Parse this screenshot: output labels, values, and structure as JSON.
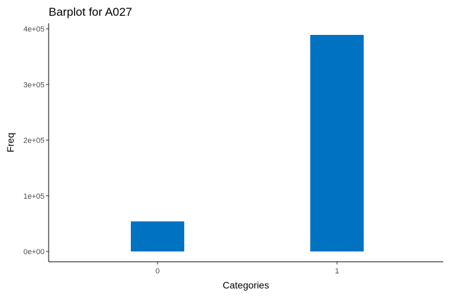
{
  "chart_data": {
    "type": "bar",
    "title": "Barplot for A027",
    "xlabel": "Categories",
    "ylabel": "Freq",
    "categories": [
      "0",
      "1"
    ],
    "values": [
      54000,
      389000
    ],
    "ylim": [
      0,
      400000
    ],
    "yticks": [
      0,
      100000,
      200000,
      300000,
      400000
    ],
    "ytick_labels": [
      "0e+00",
      "1e+05",
      "2e+05",
      "3e+05",
      "4e+05"
    ],
    "bar_color": "#0072c2",
    "grid": false,
    "legend": "none"
  }
}
